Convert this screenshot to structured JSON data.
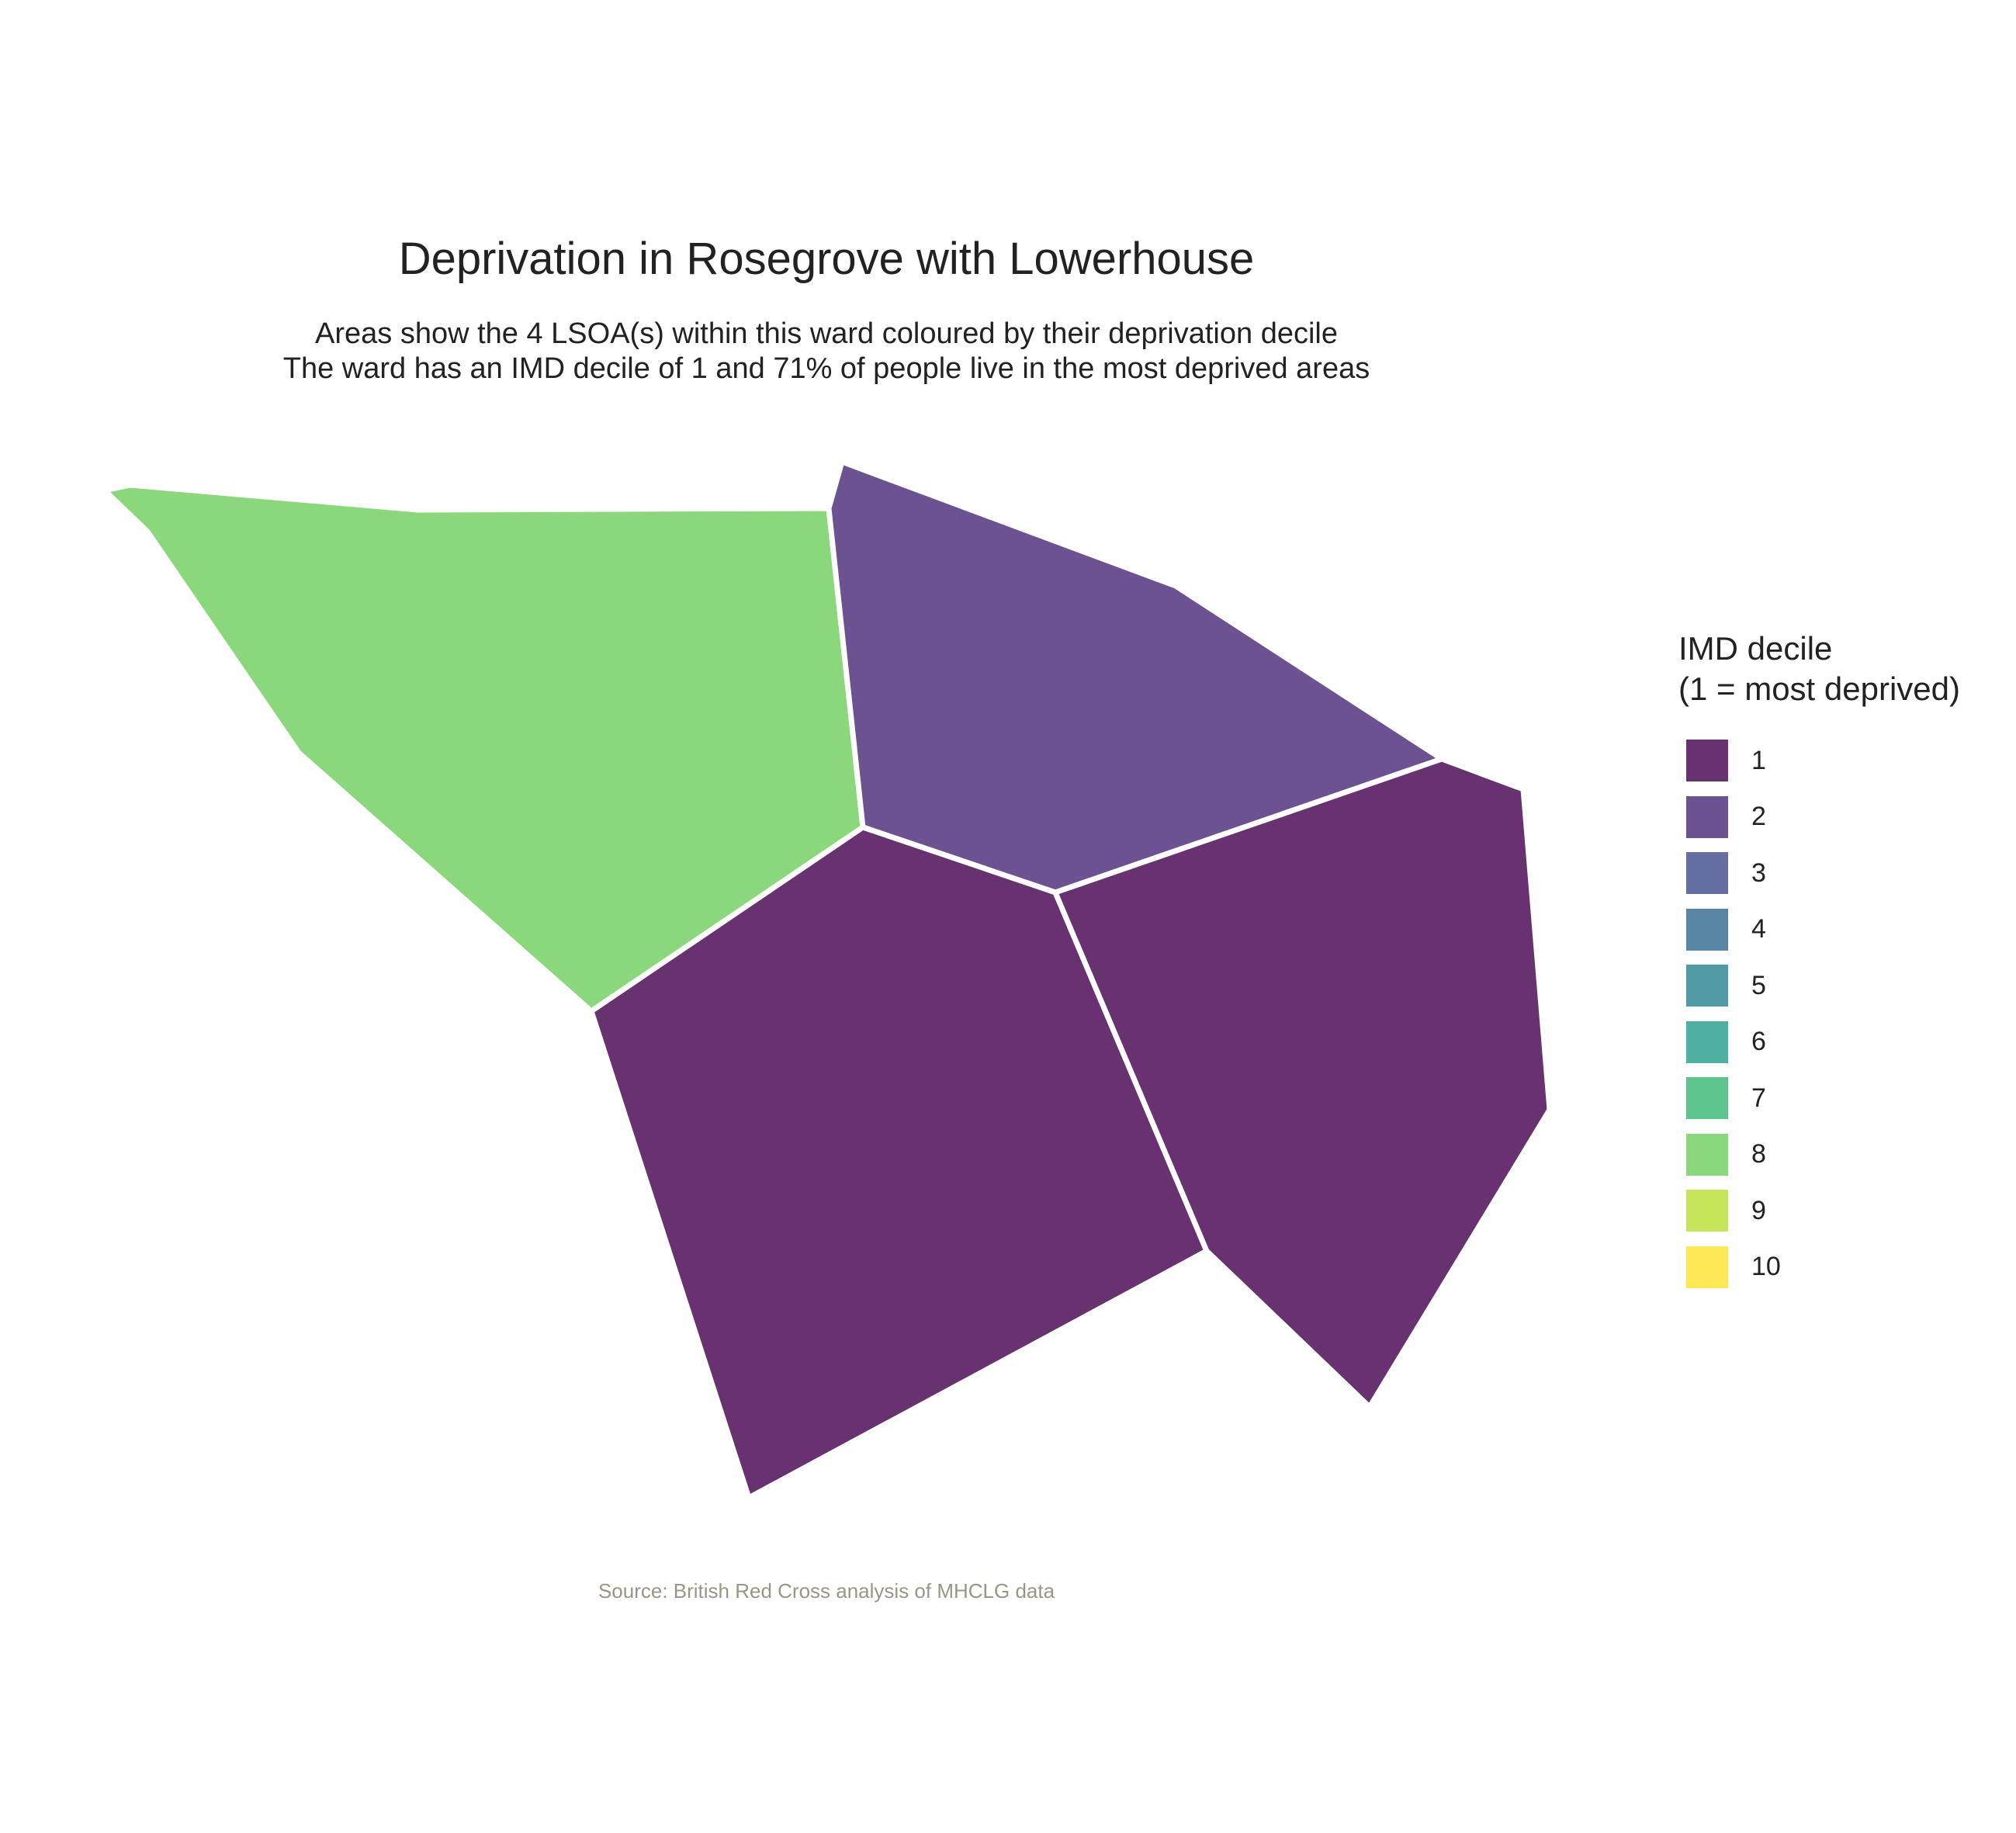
{
  "title": "Deprivation in Rosegrove with Lowerhouse",
  "subtitle": {
    "line1": "Areas show the 4 LSOA(s) within this ward coloured by their deprivation decile",
    "line2": "The ward has an IMD decile of 1 and 71% of people live in the most deprived areas"
  },
  "legend": {
    "title_line1": "IMD decile",
    "title_line2": "(1 = most deprived)",
    "items": [
      {
        "label": "1",
        "color": "#67326f"
      },
      {
        "label": "2",
        "color": "#6c5291"
      },
      {
        "label": "3",
        "color": "#646ea0"
      },
      {
        "label": "4",
        "color": "#5a86a5"
      },
      {
        "label": "5",
        "color": "#529ba6"
      },
      {
        "label": "6",
        "color": "#4db0a0"
      },
      {
        "label": "7",
        "color": "#5ec48e"
      },
      {
        "label": "8",
        "color": "#8bd77b"
      },
      {
        "label": "9",
        "color": "#c5e45a"
      },
      {
        "label": "10",
        "color": "#fbe852"
      }
    ]
  },
  "caption": "Source: British Red Cross analysis of MHCLG data",
  "areas": [
    {
      "id": "lsoa-northwest",
      "imd_decile": 8
    },
    {
      "id": "lsoa-north",
      "imd_decile": 2
    },
    {
      "id": "lsoa-south",
      "imd_decile": 1
    },
    {
      "id": "lsoa-east",
      "imd_decile": 1
    }
  ]
}
